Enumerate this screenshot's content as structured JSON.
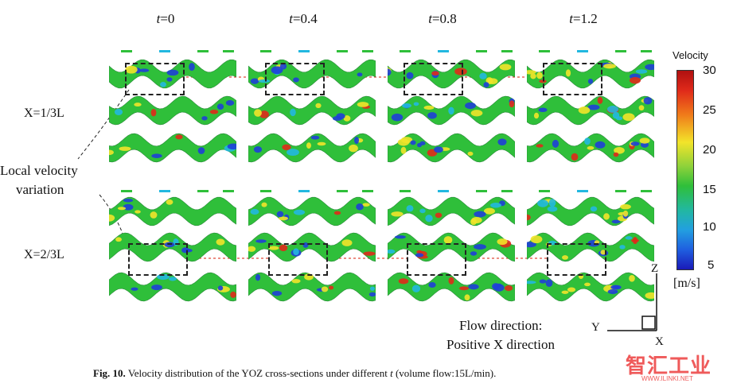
{
  "time_headers": [
    {
      "var": "t",
      "value": "=0"
    },
    {
      "var": "t",
      "value": "=0.4"
    },
    {
      "var": "t",
      "value": "=0.8"
    },
    {
      "var": "t",
      "value": "=1.2"
    }
  ],
  "row_labels": {
    "x1": "X=1/3L",
    "x2": "X=2/3L",
    "annotation_line1": "Local velocity",
    "annotation_line2": "variation"
  },
  "colorbar": {
    "title": "Velocity",
    "unit": "[m/s]",
    "ticks": [
      "30",
      "25",
      "20",
      "15",
      "10",
      "5"
    ],
    "min": 5,
    "max": 30
  },
  "axes": {
    "z": "Z",
    "y": "Y",
    "x": "X"
  },
  "flow": {
    "line1": "Flow direction:",
    "line2": "Positive X direction"
  },
  "caption": {
    "label": "Fig. 10.",
    "text_before": "Velocity distribution of the YOZ cross-sections under different",
    "var": "t",
    "text_after": "(volume flow:15L/min)."
  },
  "watermark": {
    "brand": "智汇工业",
    "url": "WWW.ILINKI.NET"
  },
  "colors": {
    "blue": "#1f3fd8",
    "cyan": "#22b8e0",
    "green": "#2fbf3a",
    "yellow": "#f2e42a",
    "red": "#e02a1a",
    "dash_red": "#e04a3a"
  }
}
